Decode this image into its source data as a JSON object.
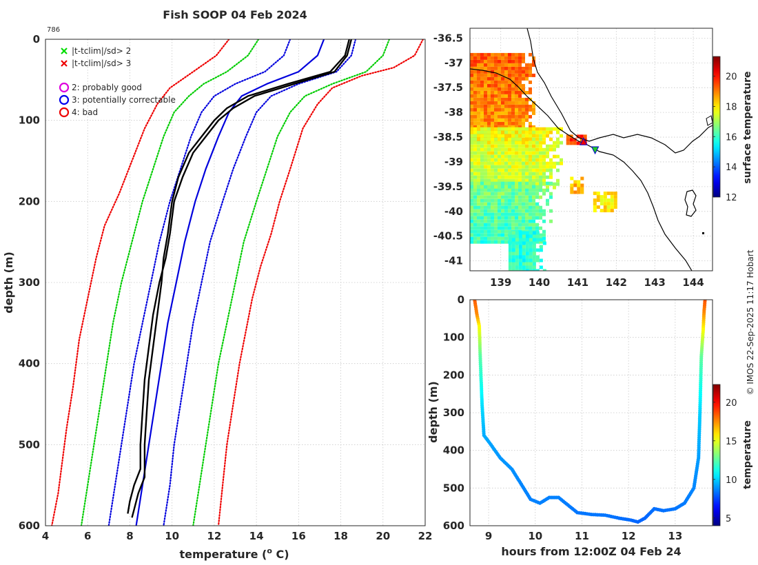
{
  "figure_title": "Fish SOOP 04 Feb 2024",
  "profile_id": "786",
  "credit": "© IMOS 22-Sep-2025 11:17 Hobart",
  "chart_data": [
    {
      "name": "temperature-profile",
      "type": "line",
      "xlabel": "temperature (",
      "xlabel_sup": "o",
      "xlabel_unit": " C)",
      "ylabel": "depth (m)",
      "xlim": [
        4,
        22
      ],
      "ylim": [
        600,
        0
      ],
      "xticks": [
        "4",
        "6",
        "8",
        "10",
        "12",
        "14",
        "16",
        "18",
        "20",
        "22"
      ],
      "yticks": [
        "0",
        "100",
        "200",
        "300",
        "400",
        "500",
        "600"
      ],
      "legend_markers": [
        {
          "label": "|t-tclim|/sd> 2",
          "color": "#00dd00"
        },
        {
          "label": "|t-tclim|/sd> 3",
          "color": "#ee0000"
        }
      ],
      "legend_flags": [
        {
          "label": "2: probably good",
          "color": "#dd00dd"
        },
        {
          "label": "3: potentially correctable",
          "color": "#0000ee"
        },
        {
          "label": "4: bad",
          "color": "#ee0000"
        }
      ],
      "series": [
        {
          "name": "climatology mean",
          "color": "#0000dd",
          "style": "solid",
          "points": [
            [
              17.2,
              0
            ],
            [
              16.9,
              20
            ],
            [
              16.0,
              40
            ],
            [
              14.5,
              55
            ],
            [
              13.3,
              70
            ],
            [
              12.7,
              90
            ],
            [
              12.2,
              120
            ],
            [
              11.6,
              160
            ],
            [
              11.1,
              200
            ],
            [
              10.6,
              250
            ],
            [
              10.2,
              300
            ],
            [
              9.8,
              350
            ],
            [
              9.5,
              400
            ],
            [
              9.2,
              450
            ],
            [
              8.9,
              500
            ],
            [
              8.6,
              550
            ],
            [
              8.3,
              600
            ]
          ]
        },
        {
          "name": "mean - 1sd",
          "color": "#0000dd",
          "style": "dotted",
          "points": [
            [
              15.6,
              0
            ],
            [
              15.3,
              20
            ],
            [
              14.4,
              40
            ],
            [
              13.0,
              55
            ],
            [
              12.0,
              70
            ],
            [
              11.4,
              90
            ],
            [
              10.9,
              120
            ],
            [
              10.4,
              160
            ],
            [
              9.9,
              200
            ],
            [
              9.4,
              250
            ],
            [
              9.0,
              300
            ],
            [
              8.6,
              350
            ],
            [
              8.2,
              400
            ],
            [
              7.9,
              450
            ],
            [
              7.6,
              500
            ],
            [
              7.3,
              550
            ],
            [
              7.0,
              600
            ]
          ]
        },
        {
          "name": "mean + 1sd",
          "color": "#0000dd",
          "style": "dotted",
          "points": [
            [
              18.7,
              0
            ],
            [
              18.5,
              20
            ],
            [
              17.8,
              40
            ],
            [
              16.0,
              55
            ],
            [
              14.7,
              70
            ],
            [
              14.0,
              90
            ],
            [
              13.5,
              120
            ],
            [
              12.9,
              160
            ],
            [
              12.4,
              200
            ],
            [
              11.8,
              250
            ],
            [
              11.4,
              300
            ],
            [
              11.0,
              350
            ],
            [
              10.7,
              400
            ],
            [
              10.4,
              450
            ],
            [
              10.1,
              500
            ],
            [
              9.9,
              550
            ],
            [
              9.6,
              600
            ]
          ]
        },
        {
          "name": "mean - 2sd",
          "color": "#00cc00",
          "style": "dotted",
          "points": [
            [
              14.1,
              0
            ],
            [
              13.6,
              20
            ],
            [
              12.6,
              40
            ],
            [
              11.5,
              55
            ],
            [
              10.8,
              70
            ],
            [
              10.1,
              90
            ],
            [
              9.6,
              120
            ],
            [
              9.1,
              160
            ],
            [
              8.6,
              200
            ],
            [
              8.1,
              250
            ],
            [
              7.6,
              300
            ],
            [
              7.2,
              350
            ],
            [
              6.9,
              400
            ],
            [
              6.6,
              450
            ],
            [
              6.3,
              500
            ],
            [
              6.0,
              550
            ],
            [
              5.7,
              600
            ]
          ]
        },
        {
          "name": "mean + 2sd",
          "color": "#00cc00",
          "style": "dotted",
          "points": [
            [
              20.3,
              0
            ],
            [
              20.0,
              20
            ],
            [
              19.2,
              40
            ],
            [
              17.6,
              55
            ],
            [
              16.3,
              70
            ],
            [
              15.6,
              90
            ],
            [
              15.0,
              120
            ],
            [
              14.5,
              160
            ],
            [
              14.0,
              200
            ],
            [
              13.4,
              250
            ],
            [
              13.0,
              300
            ],
            [
              12.6,
              350
            ],
            [
              12.2,
              400
            ],
            [
              11.9,
              450
            ],
            [
              11.6,
              500
            ],
            [
              11.3,
              550
            ],
            [
              11.0,
              600
            ]
          ]
        },
        {
          "name": "mean - 3sd",
          "color": "#ee0000",
          "style": "dotted",
          "points": [
            [
              12.7,
              0
            ],
            [
              12.1,
              20
            ],
            [
              11.0,
              40
            ],
            [
              9.9,
              60
            ],
            [
              9.3,
              80
            ],
            [
              8.7,
              110
            ],
            [
              8.1,
              150
            ],
            [
              7.5,
              190
            ],
            [
              6.8,
              230
            ],
            [
              6.4,
              270
            ],
            [
              6.0,
              320
            ],
            [
              5.6,
              370
            ],
            [
              5.3,
              430
            ],
            [
              5.0,
              480
            ],
            [
              4.8,
              520
            ],
            [
              4.6,
              560
            ],
            [
              4.3,
              600
            ]
          ]
        },
        {
          "name": "mean + 3sd",
          "color": "#ee0000",
          "style": "dotted",
          "points": [
            [
              21.9,
              0
            ],
            [
              21.5,
              20
            ],
            [
              20.5,
              35
            ],
            [
              19.0,
              45
            ],
            [
              17.6,
              60
            ],
            [
              16.9,
              80
            ],
            [
              16.2,
              110
            ],
            [
              15.6,
              160
            ],
            [
              15.1,
              200
            ],
            [
              14.7,
              240
            ],
            [
              14.2,
              280
            ],
            [
              13.8,
              320
            ],
            [
              13.5,
              360
            ],
            [
              13.2,
              400
            ],
            [
              12.9,
              450
            ],
            [
              12.6,
              500
            ],
            [
              12.4,
              550
            ],
            [
              12.2,
              600
            ]
          ]
        },
        {
          "name": "observed profile A",
          "color": "#000000",
          "style": "solid",
          "points": [
            [
              18.4,
              0
            ],
            [
              18.2,
              20
            ],
            [
              17.5,
              40
            ],
            [
              15.5,
              55
            ],
            [
              13.6,
              70
            ],
            [
              12.6,
              85
            ],
            [
              12.0,
              100
            ],
            [
              11.4,
              120
            ],
            [
              10.8,
              140
            ],
            [
              10.3,
              170
            ],
            [
              10.0,
              200
            ],
            [
              9.8,
              240
            ],
            [
              9.6,
              270
            ],
            [
              9.5,
              300
            ],
            [
              9.3,
              340
            ],
            [
              9.1,
              380
            ],
            [
              8.9,
              420
            ],
            [
              8.8,
              460
            ],
            [
              8.7,
              500
            ],
            [
              8.7,
              540
            ],
            [
              8.4,
              560
            ],
            [
              8.2,
              580
            ],
            [
              8.1,
              590
            ]
          ]
        },
        {
          "name": "observed profile B",
          "color": "#000000",
          "style": "solid",
          "points": [
            [
              18.5,
              0
            ],
            [
              18.3,
              20
            ],
            [
              17.7,
              40
            ],
            [
              15.8,
              55
            ],
            [
              13.9,
              70
            ],
            [
              12.9,
              85
            ],
            [
              12.2,
              100
            ],
            [
              11.6,
              120
            ],
            [
              11.0,
              140
            ],
            [
              10.5,
              170
            ],
            [
              10.1,
              200
            ],
            [
              9.9,
              240
            ],
            [
              9.7,
              270
            ],
            [
              9.4,
              300
            ],
            [
              9.1,
              340
            ],
            [
              8.9,
              380
            ],
            [
              8.7,
              420
            ],
            [
              8.6,
              460
            ],
            [
              8.5,
              500
            ],
            [
              8.5,
              530
            ],
            [
              8.2,
              550
            ],
            [
              8.0,
              570
            ],
            [
              7.9,
              585
            ]
          ]
        }
      ]
    },
    {
      "name": "surface-temperature-map",
      "type": "heatmap",
      "xticks": [
        "139",
        "140",
        "141",
        "142",
        "143",
        "144"
      ],
      "yticks": [
        "-36.5",
        "-37",
        "-37.5",
        "-38",
        "-38.5",
        "-39",
        "-39.5",
        "-40",
        "-40.5",
        "-41"
      ],
      "xlim": [
        138.2,
        144.5
      ],
      "ylim": [
        -41.2,
        -36.3
      ],
      "colorbar_label": "surface temperature",
      "colorbar_ticks": [
        "12",
        "14",
        "16",
        "18",
        "20"
      ],
      "colorbar_range": [
        12,
        21.3
      ],
      "markers": [
        {
          "lon": 141.15,
          "lat": -38.6,
          "shape": "triangle-up",
          "color": "#ee0000"
        },
        {
          "lon": 141.45,
          "lat": -38.75,
          "shape": "triangle-down",
          "color": "#22cc22"
        }
      ],
      "sst_regions": [
        {
          "lon": [
            138.2,
            139.9
          ],
          "lat": [
            -38.6,
            -36.8
          ],
          "temp": 19.3
        },
        {
          "lon": [
            138.2,
            140.6
          ],
          "lat": [
            -39.5,
            -38.3
          ],
          "temp": 17.8
        },
        {
          "lon": [
            138.2,
            140.3
          ],
          "lat": [
            -40.6,
            -39.4
          ],
          "temp": 16.6
        },
        {
          "lon": [
            139.2,
            140.1
          ],
          "lat": [
            -41.2,
            -40.4
          ],
          "temp": 15.9
        },
        {
          "lon": [
            140.8,
            141.1
          ],
          "lat": [
            -39.6,
            -39.3
          ],
          "temp": 18.4
        },
        {
          "lon": [
            141.4,
            142.0
          ],
          "lat": [
            -40.0,
            -39.6
          ],
          "temp": 18.0
        },
        {
          "lon": [
            140.7,
            141.2
          ],
          "lat": [
            -38.6,
            -38.45
          ],
          "temp": 19.6
        }
      ]
    },
    {
      "name": "depth-time-section",
      "type": "scatter",
      "xlabel": "hours from 12:00Z 04 Feb 24",
      "ylabel": "depth (m)",
      "xlim": [
        8.6,
        13.8
      ],
      "ylim": [
        600,
        0
      ],
      "xticks": [
        "9",
        "10",
        "11",
        "12",
        "13"
      ],
      "yticks": [
        "0",
        "100",
        "200",
        "300",
        "400",
        "500",
        "600"
      ],
      "colorbar_label": "temperature",
      "colorbar_ticks": [
        "5",
        "10",
        "15",
        "20"
      ],
      "colorbar_range": [
        4,
        22.3
      ],
      "path": [
        [
          8.7,
          0,
          18.4
        ],
        [
          8.75,
          40,
          17.5
        ],
        [
          8.8,
          70,
          15.5
        ],
        [
          8.82,
          150,
          12.5
        ],
        [
          8.86,
          280,
          10.3
        ],
        [
          8.9,
          360,
          9.4
        ],
        [
          9.05,
          385,
          9.2
        ],
        [
          9.25,
          420,
          9.0
        ],
        [
          9.5,
          450,
          8.9
        ],
        [
          9.7,
          490,
          8.7
        ],
        [
          9.9,
          530,
          8.6
        ],
        [
          10.1,
          540,
          8.6
        ],
        [
          10.3,
          525,
          8.6
        ],
        [
          10.5,
          525,
          8.6
        ],
        [
          10.7,
          545,
          8.5
        ],
        [
          10.9,
          565,
          8.4
        ],
        [
          11.2,
          570,
          8.4
        ],
        [
          11.5,
          572,
          8.4
        ],
        [
          11.8,
          580,
          8.3
        ],
        [
          12.05,
          585,
          8.2
        ],
        [
          12.2,
          590,
          8.1
        ],
        [
          12.35,
          580,
          8.1
        ],
        [
          12.55,
          555,
          8.3
        ],
        [
          12.75,
          560,
          8.3
        ],
        [
          13.0,
          555,
          8.4
        ],
        [
          13.2,
          540,
          8.5
        ],
        [
          13.4,
          500,
          8.7
        ],
        [
          13.5,
          420,
          9.1
        ],
        [
          13.53,
          300,
          10.0
        ],
        [
          13.56,
          150,
          12.6
        ],
        [
          13.6,
          80,
          15.3
        ],
        [
          13.62,
          30,
          17.6
        ],
        [
          13.64,
          0,
          18.5
        ]
      ]
    }
  ]
}
